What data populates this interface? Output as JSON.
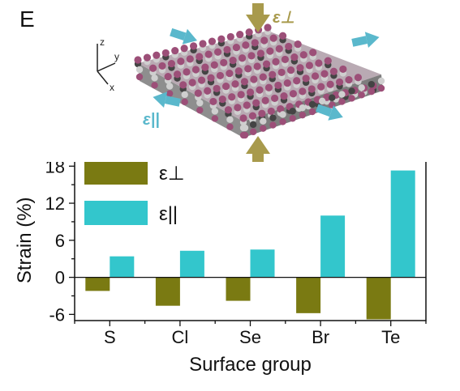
{
  "panel_label": "E",
  "colors": {
    "perp": "#7a7a12",
    "parallel": "#33c6cc",
    "arrow_perp": "#a89a4c",
    "arrow_parallel": "#5ab8cc",
    "atom_surface": "#9c4f78",
    "atom_grey": "#cfcfcf",
    "atom_dark": "#444444",
    "axis": "#111111"
  },
  "schematic": {
    "axis_labels": {
      "z": "z",
      "y": "y",
      "x": "x"
    },
    "strain_perp_label": "ε⊥",
    "strain_parallel_label": "ε||"
  },
  "chart_data": {
    "type": "bar",
    "categories": [
      "S",
      "Cl",
      "Se",
      "Br",
      "Te"
    ],
    "series": [
      {
        "name": "ε⊥",
        "values": [
          -2.2,
          -4.6,
          -3.8,
          -5.8,
          -6.8
        ],
        "color": "#7a7a12"
      },
      {
        "name": "ε||",
        "values": [
          3.4,
          4.3,
          4.5,
          10.0,
          17.3
        ],
        "color": "#33c6cc"
      }
    ],
    "xlabel": "Surface group",
    "ylabel": "Strain (%)",
    "ylim": [
      -7,
      20
    ],
    "yticks": [
      -6,
      0,
      6,
      12,
      18
    ],
    "ytick_labels": [
      "-6",
      "0",
      "6",
      "12",
      "18"
    ],
    "legend_position": "top-left",
    "zero_line": true,
    "grid": false
  }
}
